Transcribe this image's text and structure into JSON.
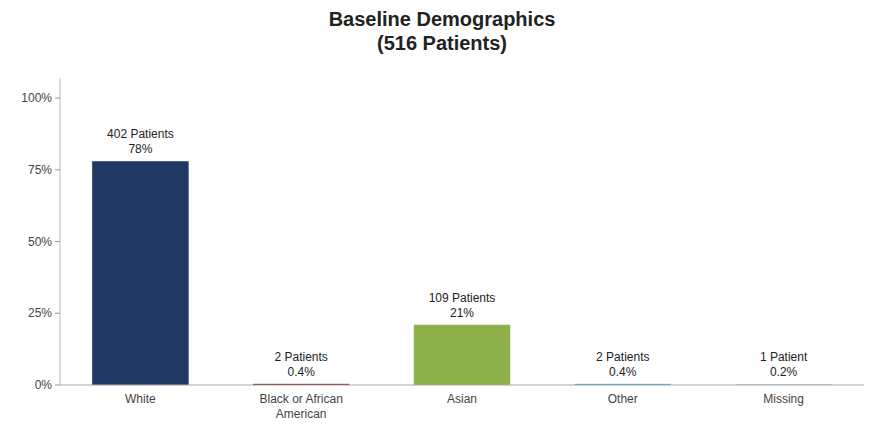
{
  "chart_data": {
    "type": "bar",
    "title": "Baseline Demographics\n(516 Patients)",
    "categories": [
      "White",
      "Black or African\nAmerican",
      "Asian",
      "Other",
      "Missing"
    ],
    "values": [
      78,
      0.4,
      21,
      0.4,
      0.2
    ],
    "colors": [
      "#1F3864",
      "#8B0000",
      "#8DB04A",
      "#5B9BD5",
      "#70ADD4"
    ],
    "annotations": [
      "402 Patients\n78%",
      "2 Patients\n0.4%",
      "109 Patients\n21%",
      "2 Patients\n0.4%",
      "1 Patient\n0.2%"
    ],
    "ylim": [
      0,
      107
    ],
    "yticks": [
      {
        "value": 0,
        "label": "0%"
      },
      {
        "value": 25,
        "label": "25%"
      },
      {
        "value": 50,
        "label": "50%"
      },
      {
        "value": 75,
        "label": "75%"
      },
      {
        "value": 100,
        "label": "100%"
      }
    ],
    "grid": false
  }
}
